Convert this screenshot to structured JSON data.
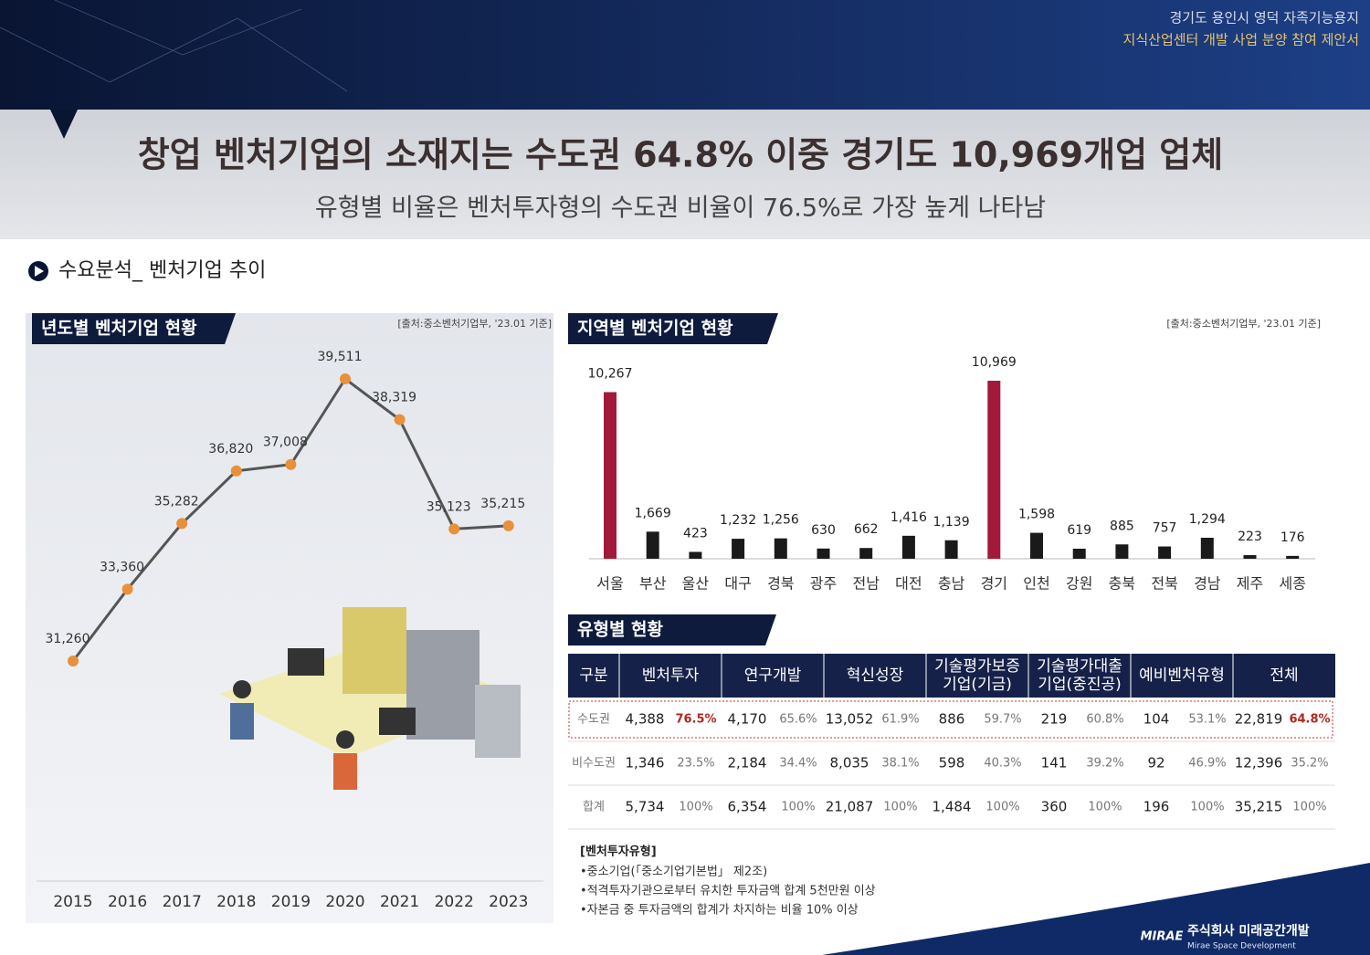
{
  "header": {
    "line1": "경기도 용인시 영덕 자족기능용지",
    "line2": "지식산업센터 개발 사업 분양 참여 제안서"
  },
  "title": "창업 벤처기업의 소재지는 수도권 64.8% 이중 경기도 10,969개업 업체",
  "subtitle": "유형별 비율은 벤처투자형의 수도권 비율이 76.5%로 가장 높게 나타남",
  "section": "수요분석_ 벤처기업 추이",
  "chart_data": [
    {
      "type": "line",
      "title": "년도별 벤처기업 현황",
      "source": "[출처:중소벤처기업부, '23.01 기준]",
      "categories": [
        "2015",
        "2016",
        "2017",
        "2018",
        "2019",
        "2020",
        "2021",
        "2022",
        "2023"
      ],
      "values": [
        31260,
        33360,
        35282,
        36820,
        37008,
        39511,
        38319,
        35123,
        35215
      ],
      "value_labels": [
        "31,260",
        "33,360",
        "35,282",
        "36,820",
        "37,008",
        "39,511",
        "38,319",
        "35,123",
        "35,215"
      ],
      "color": "#555555",
      "marker_color": "#e8903a"
    },
    {
      "type": "bar",
      "title": "지역별 벤처기업 현황",
      "source": "[출처:중소벤처기업부, '23.01 기준]",
      "categories": [
        "서울",
        "부산",
        "울산",
        "대구",
        "경북",
        "광주",
        "전남",
        "대전",
        "충남",
        "경기",
        "인천",
        "강원",
        "충북",
        "전북",
        "경남",
        "제주",
        "세종"
      ],
      "values": [
        10267,
        1669,
        423,
        1232,
        1256,
        630,
        662,
        1416,
        1139,
        10969,
        1598,
        619,
        885,
        757,
        1294,
        223,
        176
      ],
      "value_labels": [
        "10,267",
        "1,669",
        "423",
        "1,232",
        "1,256",
        "630",
        "662",
        "1,416",
        "1,139",
        "10,969",
        "1,598",
        "619",
        "885",
        "757",
        "1,294",
        "223",
        "176"
      ],
      "colors": [
        "#a3193a",
        "#1a1a1a",
        "#1a1a1a",
        "#1a1a1a",
        "#1a1a1a",
        "#1a1a1a",
        "#1a1a1a",
        "#1a1a1a",
        "#1a1a1a",
        "#a3193a",
        "#1a1a1a",
        "#1a1a1a",
        "#1a1a1a",
        "#1a1a1a",
        "#1a1a1a",
        "#1a1a1a",
        "#1a1a1a"
      ]
    }
  ],
  "table": {
    "title": "유형별 현황",
    "header": [
      [
        "구분"
      ],
      [
        "벤처투자"
      ],
      [
        "연구개발"
      ],
      [
        "혁신성장"
      ],
      [
        "기술평가보증",
        "기업(기금)"
      ],
      [
        "기술평가대출",
        "기업(중진공)"
      ],
      [
        "예비벤처유형"
      ],
      [
        "전체"
      ]
    ],
    "rows": [
      [
        "수도권",
        "4,388",
        "76.5%",
        "4,170",
        "65.6%",
        "13,052",
        "61.9%",
        "886",
        "59.7%",
        "219",
        "60.8%",
        "104",
        "53.1%",
        "22,819",
        "64.8%"
      ],
      [
        "비수도권",
        "1,346",
        "23.5%",
        "2,184",
        "34.4%",
        "8,035",
        "38.1%",
        "598",
        "40.3%",
        "141",
        "39.2%",
        "92",
        "46.9%",
        "12,396",
        "35.2%"
      ],
      [
        "합계",
        "5,734",
        "100%",
        "6,354",
        "100%",
        "21,087",
        "100%",
        "1,484",
        "100%",
        "360",
        "100%",
        "196",
        "100%",
        "35,215",
        "100%"
      ]
    ]
  },
  "notes": {
    "title": "[벤처투자유형]",
    "items": [
      "•중소기업(「중소기업기본법」 제2조)",
      "•적격투자기관으로부터 유치한 투자금액 합계 5천만원 이상",
      "•자본금 중 투자금액의 합계가 차지하는 비율 10% 이상"
    ]
  },
  "footer": {
    "logo": "MIRAE",
    "company": "주식회사 미래공간개발",
    "english": "Mirae Space Development"
  }
}
